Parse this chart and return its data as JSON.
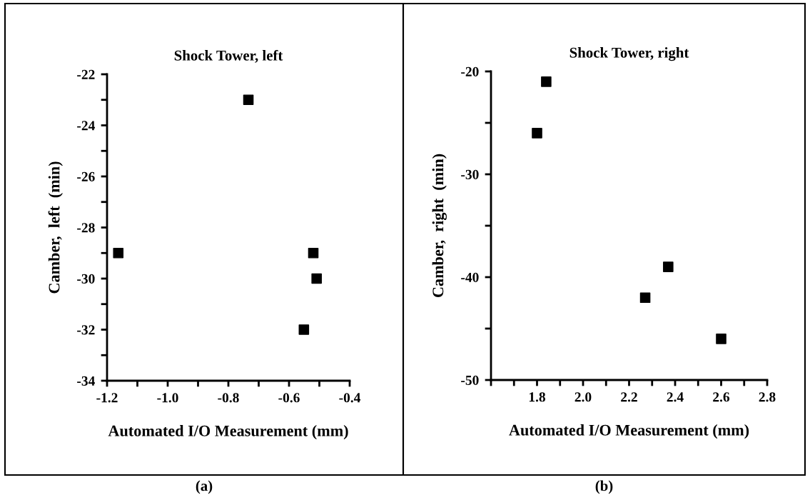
{
  "chart_data": [
    {
      "type": "scatter",
      "title": "Shock Tower, left",
      "xlabel": "Automated I/O Measurement (mm)",
      "ylabel": "Camber,  left  (min)",
      "x": [
        -1.163,
        -0.734,
        -0.52,
        -0.509,
        -0.551
      ],
      "series": [
        {
          "color": "#000000",
          "values": [
            -29,
            -23,
            -29,
            -30,
            -32
          ]
        }
      ],
      "xlim": [
        -1.2,
        -0.4
      ],
      "ylim": [
        -34,
        -22
      ],
      "xticks": [
        {
          "value": -1.2,
          "label": "-1.2"
        },
        {
          "value": -1.1,
          "label": null
        },
        {
          "value": -1.0,
          "label": "-1.0"
        },
        {
          "value": -0.9,
          "label": null
        },
        {
          "value": -0.8,
          "label": "-0.8"
        },
        {
          "value": -0.7,
          "label": null
        },
        {
          "value": -0.6,
          "label": "-0.6"
        },
        {
          "value": -0.5,
          "label": null
        },
        {
          "value": -0.4,
          "label": "-0.4"
        }
      ],
      "yticks": [
        -34,
        {
          "value": -33,
          "label": null
        },
        -32,
        {
          "value": -31,
          "label": null
        },
        -30,
        {
          "value": -29,
          "label": null
        },
        -28,
        {
          "value": -27,
          "label": null
        },
        -26,
        {
          "value": -25,
          "label": null
        },
        -24,
        {
          "value": -23,
          "label": null
        },
        -22
      ],
      "marker": "square",
      "grid": false,
      "annotations": [
        "(a)"
      ]
    },
    {
      "type": "scatter",
      "title": "Shock Tower, right",
      "xlabel": "Automated I/O Measurement (mm)",
      "ylabel": "Camber,  right  (min)",
      "x": [
        1.8,
        1.84,
        2.27,
        2.37,
        2.6
      ],
      "series": [
        {
          "color": "#000000",
          "values": [
            -26,
            -21,
            -42,
            -39,
            -46
          ]
        }
      ],
      "xlim": [
        1.6,
        2.8
      ],
      "ylim": [
        -50,
        -20
      ],
      "xticks": [
        {
          "value": 1.6,
          "label": null
        },
        {
          "value": 1.7,
          "label": null
        },
        {
          "value": 1.8,
          "label": "1.8"
        },
        {
          "value": 1.9,
          "label": null
        },
        {
          "value": 2.0,
          "label": "2.0"
        },
        {
          "value": 2.1,
          "label": null
        },
        {
          "value": 2.2,
          "label": "2.2"
        },
        {
          "value": 2.3,
          "label": null
        },
        {
          "value": 2.4,
          "label": "2.4"
        },
        {
          "value": 2.5,
          "label": null
        },
        {
          "value": 2.6,
          "label": "2.6"
        },
        {
          "value": 2.7,
          "label": null
        },
        {
          "value": 2.8,
          "label": "2.8"
        }
      ],
      "yticks": [
        -50,
        {
          "value": -45,
          "label": null
        },
        -40,
        {
          "value": -35,
          "label": null
        },
        -30,
        {
          "value": -25,
          "label": null
        },
        -20
      ],
      "marker": "square",
      "grid": false,
      "annotations": [
        "(b)"
      ]
    }
  ]
}
